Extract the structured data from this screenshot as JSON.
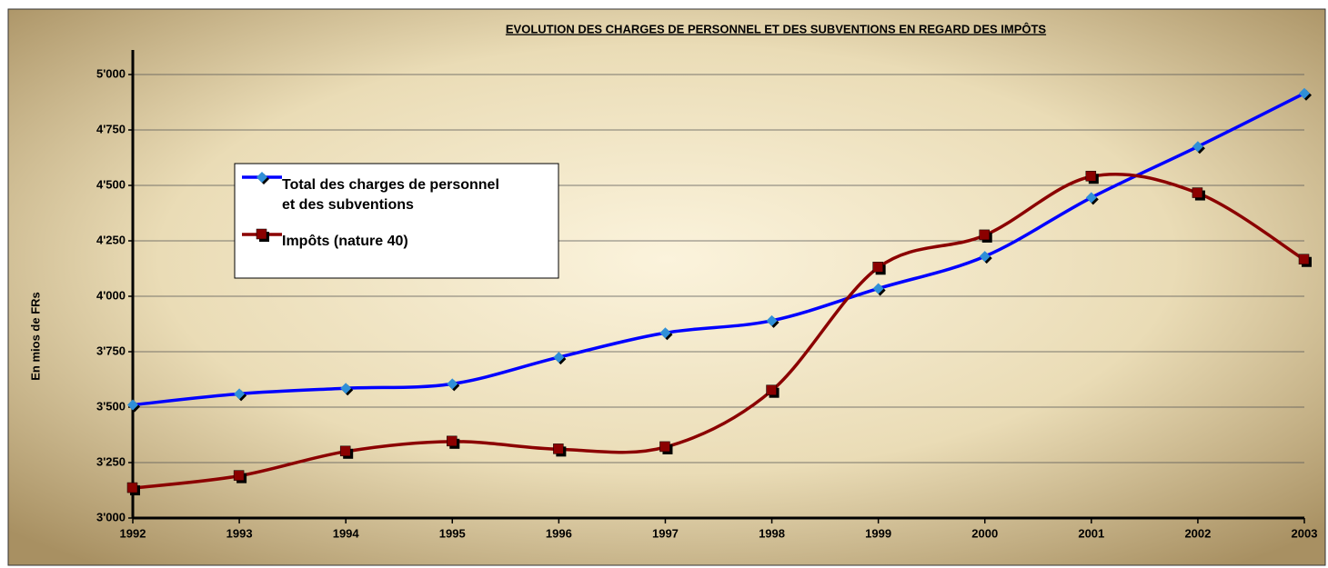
{
  "chart_data": {
    "type": "line",
    "title": "EVOLUTION DES CHARGES DE PERSONNEL ET DES SUBVENTIONS EN REGARD DES IMPÔTS",
    "y_label": "En mios de FRs",
    "categories": [
      "1992",
      "1993",
      "1994",
      "1995",
      "1996",
      "1997",
      "1998",
      "1999",
      "2000",
      "2001",
      "2002",
      "2003"
    ],
    "series": [
      {
        "name": "Total des charges de personnel et des subventions",
        "color": "#0000ff",
        "marker_color": "#2f8fd8",
        "values": [
          3510,
          3560,
          3585,
          3605,
          3725,
          3835,
          3890,
          4035,
          4180,
          4445,
          4675,
          4915
        ]
      },
      {
        "name": "Impôts (nature 40)",
        "color": "#8b0000",
        "marker_color": "#8b0000",
        "values": [
          3135,
          3190,
          3300,
          3345,
          3310,
          3320,
          3575,
          4130,
          4275,
          4540,
          4465,
          4165
        ]
      }
    ],
    "ylim": [
      3000,
      5000
    ],
    "yticks": [
      {
        "value": 3000,
        "label": "3'000"
      },
      {
        "value": 3250,
        "label": "3'250"
      },
      {
        "value": 3500,
        "label": "3'500"
      },
      {
        "value": 3750,
        "label": "3'750"
      },
      {
        "value": 4000,
        "label": "4'000"
      },
      {
        "value": 4250,
        "label": "4'250"
      },
      {
        "value": 4500,
        "label": "4'500"
      },
      {
        "value": 4750,
        "label": "4'750"
      },
      {
        "value": 5000,
        "label": "5'000"
      }
    ],
    "grid": true,
    "smooth": true
  }
}
